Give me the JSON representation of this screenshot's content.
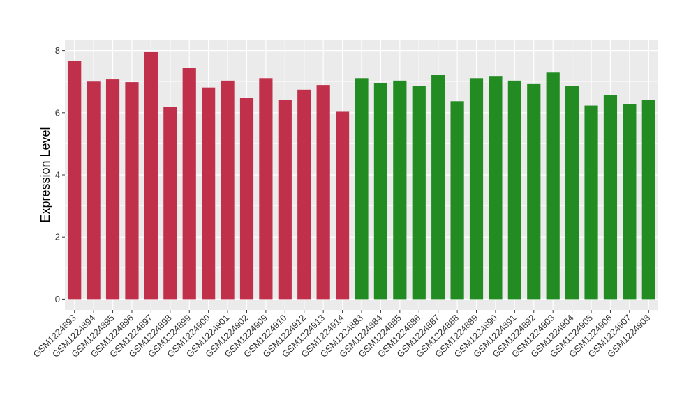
{
  "chart_data": {
    "type": "bar",
    "title": "",
    "xlabel": "",
    "ylabel": "Expression Level",
    "ylim": [
      -0.35,
      8.35
    ],
    "yticks": [
      0,
      2,
      4,
      6,
      8
    ],
    "grid": true,
    "colors": {
      "red_group": "#C1304A",
      "green_group": "#228B22",
      "panel": "#EBEBEB",
      "gridline": "#FFFFFF"
    },
    "categories": [
      "GSM1224893",
      "GSM1224894",
      "GSM1224895",
      "GSM1224896",
      "GSM1224897",
      "GSM1224898",
      "GSM1224899",
      "GSM1224900",
      "GSM1224901",
      "GSM1224902",
      "GSM1224909",
      "GSM1224910",
      "GSM1224912",
      "GSM1224913",
      "GSM1224914",
      "GSM1224883",
      "GSM1224884",
      "GSM1224885",
      "GSM1224886",
      "GSM1224887",
      "GSM1224888",
      "GSM1224889",
      "GSM1224890",
      "GSM1224891",
      "GSM1224892",
      "GSM1224903",
      "GSM1224904",
      "GSM1224905",
      "GSM1224906",
      "GSM1224907",
      "GSM1224908"
    ],
    "values": [
      7.66,
      7.0,
      7.07,
      6.98,
      7.97,
      6.19,
      7.45,
      6.81,
      7.03,
      6.48,
      7.11,
      6.4,
      6.74,
      6.89,
      6.03,
      7.11,
      6.96,
      7.03,
      6.87,
      7.22,
      6.37,
      7.11,
      7.18,
      7.03,
      6.94,
      7.29,
      6.87,
      6.23,
      6.56,
      6.28,
      6.42
    ],
    "groups": [
      "red_group",
      "red_group",
      "red_group",
      "red_group",
      "red_group",
      "red_group",
      "red_group",
      "red_group",
      "red_group",
      "red_group",
      "red_group",
      "red_group",
      "red_group",
      "red_group",
      "red_group",
      "green_group",
      "green_group",
      "green_group",
      "green_group",
      "green_group",
      "green_group",
      "green_group",
      "green_group",
      "green_group",
      "green_group",
      "green_group",
      "green_group",
      "green_group",
      "green_group",
      "green_group",
      "green_group"
    ]
  }
}
